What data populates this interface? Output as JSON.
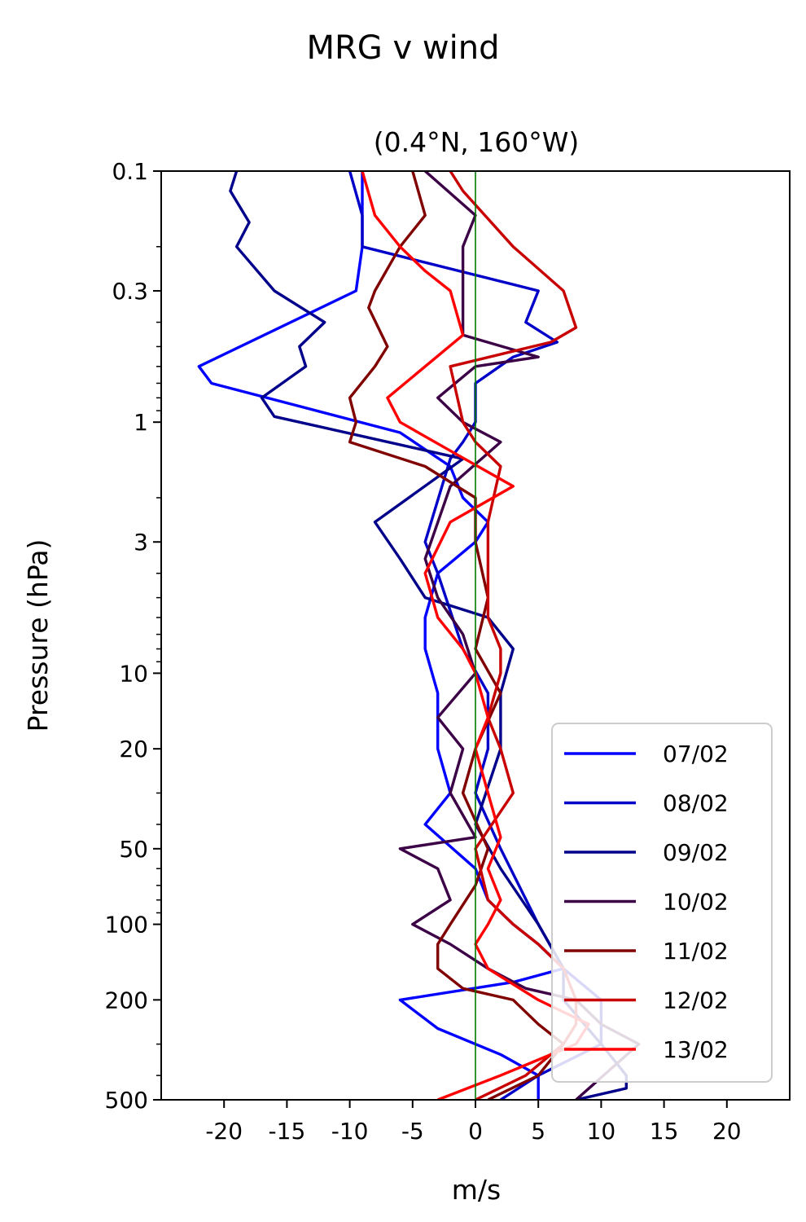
{
  "chart_data": {
    "type": "line",
    "title": "MRG v wind",
    "subtitle": "(0.4°N, 160°W)",
    "xlabel": "m/s",
    "ylabel": "Pressure (hPa)",
    "xlim": [
      -25,
      25
    ],
    "ylim": [
      0.1,
      500
    ],
    "yscale": "log",
    "y_inverted": true,
    "xticks": [
      -20,
      -15,
      -10,
      -5,
      0,
      5,
      10,
      15,
      20
    ],
    "xtick_labels": [
      "-20",
      "-15",
      "-10",
      "-5",
      "0",
      "5",
      "10",
      "15",
      "20"
    ],
    "yticks": [
      0.1,
      0.3,
      1,
      3,
      10,
      20,
      50,
      100,
      200,
      500
    ],
    "ytick_labels": [
      "0.1",
      "0.3",
      "1",
      "3",
      "10",
      "20",
      "50",
      "100",
      "200",
      "500"
    ],
    "reference_line": {
      "x": 0,
      "color": "#007a00"
    },
    "grid": false,
    "legend": "lower-right",
    "series": [
      {
        "name": "07/02",
        "color": "#0000ff",
        "x": [
          -9,
          -9,
          -9.5,
          -22,
          -21,
          -6,
          -2,
          -1,
          1,
          0,
          -3,
          -4,
          -4,
          -3,
          -3,
          -2,
          -4,
          0,
          1,
          3,
          5,
          7,
          3,
          -6,
          -3,
          2,
          5,
          5
        ],
        "y": [
          0.1,
          0.2,
          0.3,
          0.6,
          0.7,
          1.1,
          1.5,
          2,
          2.5,
          3,
          4,
          6,
          8,
          12,
          20,
          30,
          40,
          60,
          80,
          100,
          120,
          150,
          170,
          200,
          260,
          330,
          400,
          500
        ]
      },
      {
        "name": "08/02",
        "color": "#0000c8",
        "x": [
          -10,
          -9,
          -9,
          5,
          4,
          6.5,
          3,
          0,
          0,
          -1,
          -2,
          -4,
          -3,
          -1,
          1,
          1,
          0,
          2,
          5,
          7,
          10,
          10,
          5,
          2
        ],
        "y": [
          0.1,
          0.15,
          0.2,
          0.3,
          0.4,
          0.48,
          0.55,
          0.7,
          1.0,
          1.2,
          1.4,
          3,
          4,
          8,
          12,
          20,
          30,
          50,
          100,
          150,
          200,
          300,
          400,
          500
        ]
      },
      {
        "name": "09/02",
        "color": "#00008a",
        "x": [
          -19,
          -19.5,
          -18,
          -19,
          -16,
          -12,
          -14,
          -13.5,
          -17,
          -16,
          -1,
          -8,
          -6,
          -4,
          1,
          3,
          2,
          2,
          0,
          2,
          5,
          7,
          7,
          10,
          12,
          12,
          8
        ],
        "y": [
          0.1,
          0.12,
          0.16,
          0.2,
          0.3,
          0.4,
          0.5,
          0.6,
          0.8,
          0.95,
          1.4,
          2.5,
          3.5,
          5,
          6,
          8,
          12,
          20,
          40,
          60,
          100,
          150,
          200,
          300,
          400,
          450,
          500
        ]
      },
      {
        "name": "10/02",
        "color": "#3c0046",
        "x": [
          -4,
          0,
          -1,
          -1,
          -1,
          5,
          0,
          -3,
          -1,
          2,
          -2,
          -4,
          -3,
          -1,
          0,
          -3,
          -1,
          -2,
          0,
          -6,
          -3,
          -2,
          -5,
          -2,
          1,
          4,
          8,
          10,
          13,
          8
        ],
        "y": [
          0.1,
          0.15,
          0.2,
          0.3,
          0.45,
          0.55,
          0.6,
          0.8,
          1.0,
          1.2,
          1.8,
          3.5,
          5,
          7,
          10,
          15,
          20,
          30,
          45,
          50,
          60,
          80,
          100,
          120,
          150,
          180,
          200,
          250,
          300,
          500
        ]
      },
      {
        "name": "11/02",
        "color": "#800000",
        "x": [
          -5,
          -4,
          -6,
          -8,
          -8.5,
          -7,
          -8,
          -10,
          -9.5,
          -10,
          -4,
          0,
          0,
          1,
          0,
          2,
          0,
          -1,
          1,
          0,
          -2,
          -3,
          -3,
          -1,
          3,
          5,
          7,
          5,
          1
        ],
        "y": [
          0.1,
          0.15,
          0.2,
          0.3,
          0.35,
          0.5,
          0.6,
          0.8,
          1.0,
          1.2,
          1.5,
          2,
          3,
          5,
          8,
          12,
          20,
          30,
          50,
          70,
          100,
          120,
          150,
          180,
          200,
          250,
          300,
          400,
          500
        ]
      },
      {
        "name": "12/02",
        "color": "#c80000",
        "x": [
          -2,
          -1,
          3,
          7,
          8,
          6,
          -2,
          -1,
          0,
          2,
          1,
          1,
          1,
          2,
          2,
          1,
          2,
          3,
          0,
          1,
          3,
          5,
          7,
          8,
          8,
          7,
          4,
          0
        ],
        "y": [
          0.1,
          0.12,
          0.2,
          0.3,
          0.42,
          0.48,
          0.6,
          1.0,
          1.2,
          1.5,
          2.5,
          4,
          6,
          8,
          10,
          15,
          20,
          30,
          50,
          80,
          100,
          120,
          150,
          200,
          250,
          300,
          400,
          500
        ]
      },
      {
        "name": "13/02",
        "color": "#ff0000",
        "x": [
          -9,
          -8,
          -6,
          -4,
          -2,
          -1,
          -7,
          -6,
          -2,
          3,
          -2,
          -4,
          -3,
          -1,
          0,
          1,
          0,
          1,
          2,
          1,
          2,
          1,
          0,
          1,
          5,
          9,
          8,
          2,
          -3
        ],
        "y": [
          0.1,
          0.15,
          0.2,
          0.25,
          0.3,
          0.45,
          0.8,
          1.0,
          1.3,
          1.8,
          2.5,
          4,
          6,
          8,
          10,
          15,
          20,
          30,
          45,
          60,
          80,
          100,
          120,
          150,
          200,
          250,
          300,
          400,
          500
        ]
      }
    ]
  }
}
